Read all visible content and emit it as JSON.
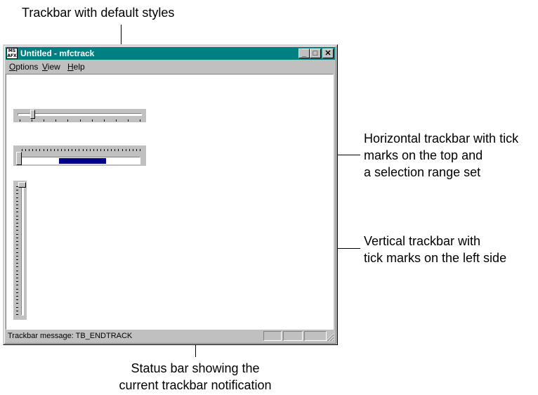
{
  "callouts": {
    "default_trackbar": "Trackbar with default styles",
    "horizontal_trackbar": [
      "Horizontal trackbar with tick",
      "marks on the top and",
      "a selection range set"
    ],
    "vertical_trackbar": [
      "Vertical trackbar with",
      "tick marks on the left side"
    ],
    "status_bar": [
      "Status bar showing the",
      "current trackbar notification"
    ]
  },
  "window": {
    "title": "Untitled - mfctrack",
    "icon_text": [
      "MS",
      "AFX"
    ],
    "minimize_symbol": "_",
    "maximize_symbol": "□",
    "close_symbol": "✕"
  },
  "menu": {
    "items": [
      {
        "label": "Options",
        "mnemonic": "O",
        "rest": "ptions"
      },
      {
        "label": "View",
        "mnemonic": "V",
        "rest": "iew"
      },
      {
        "label": "Help",
        "mnemonic": "H",
        "rest": "elp"
      }
    ]
  },
  "trackbars": {
    "default": {
      "position_fraction": 0.12
    },
    "horizontal_selection": {
      "selection_start_fraction": 0.33,
      "selection_end_fraction": 0.72,
      "thumb_fraction": 0.0
    },
    "vertical": {
      "thumb_fraction": 0.0
    }
  },
  "statusbar": {
    "message": "Trackbar message: TB_ENDTRACK"
  },
  "colors": {
    "titlebar": "#008080",
    "selection": "#000080",
    "face": "#c0c0c0"
  }
}
